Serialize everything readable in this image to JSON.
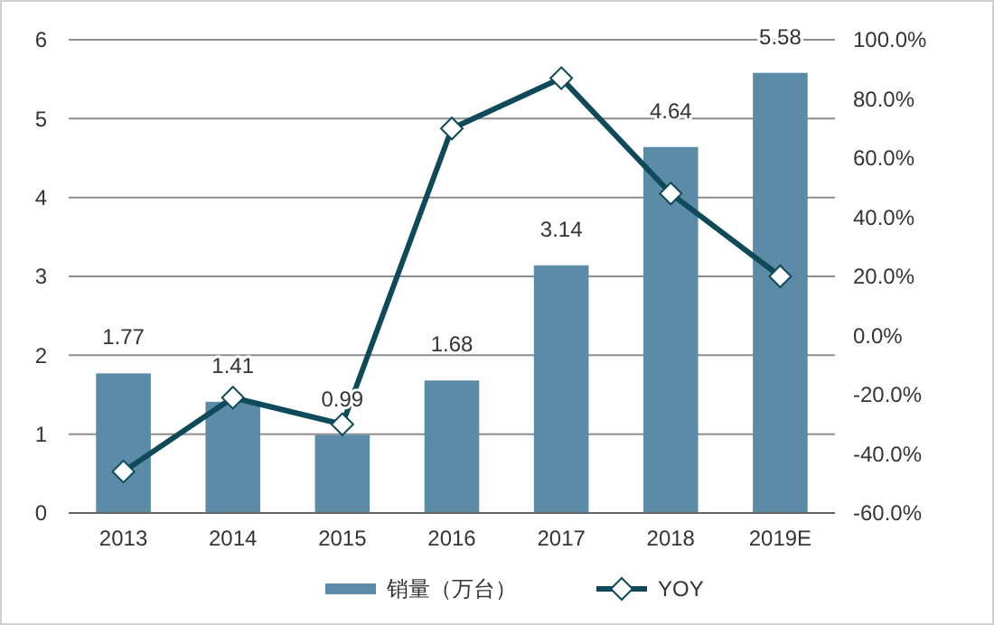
{
  "chart_data": {
    "type": "bar",
    "categories": [
      "2013",
      "2014",
      "2015",
      "2016",
      "2017",
      "2018",
      "2019E"
    ],
    "series": [
      {
        "name": "销量（万台）",
        "color": "#5b8ba6",
        "values": [
          1.77,
          1.41,
          0.99,
          1.68,
          3.14,
          4.64,
          5.58
        ],
        "data_labels": true
      },
      {
        "name": "YOY",
        "type": "line",
        "axis": "y2",
        "color": "#0f4a5a",
        "marker": "diamond",
        "values": [
          -46,
          -21,
          -30,
          70,
          87,
          48,
          20
        ]
      }
    ],
    "ylim": [
      0,
      6
    ],
    "yticks": [
      0,
      1,
      2,
      3,
      4,
      5,
      6
    ],
    "y2lim": [
      -60,
      100
    ],
    "y2ticks": [
      {
        "value": -60,
        "label": "-60.0%"
      },
      {
        "value": -40,
        "label": "-40.0%"
      },
      {
        "value": -20,
        "label": "-20.0%"
      },
      {
        "value": 0,
        "label": "0.0%"
      },
      {
        "value": 20,
        "label": "20.0%"
      },
      {
        "value": 40,
        "label": "40.0%"
      },
      {
        "value": 60,
        "label": "60.0%"
      },
      {
        "value": 80,
        "label": "80.0%"
      },
      {
        "value": 100,
        "label": "100.0%"
      }
    ],
    "grid": "y",
    "legend": "bottom"
  }
}
